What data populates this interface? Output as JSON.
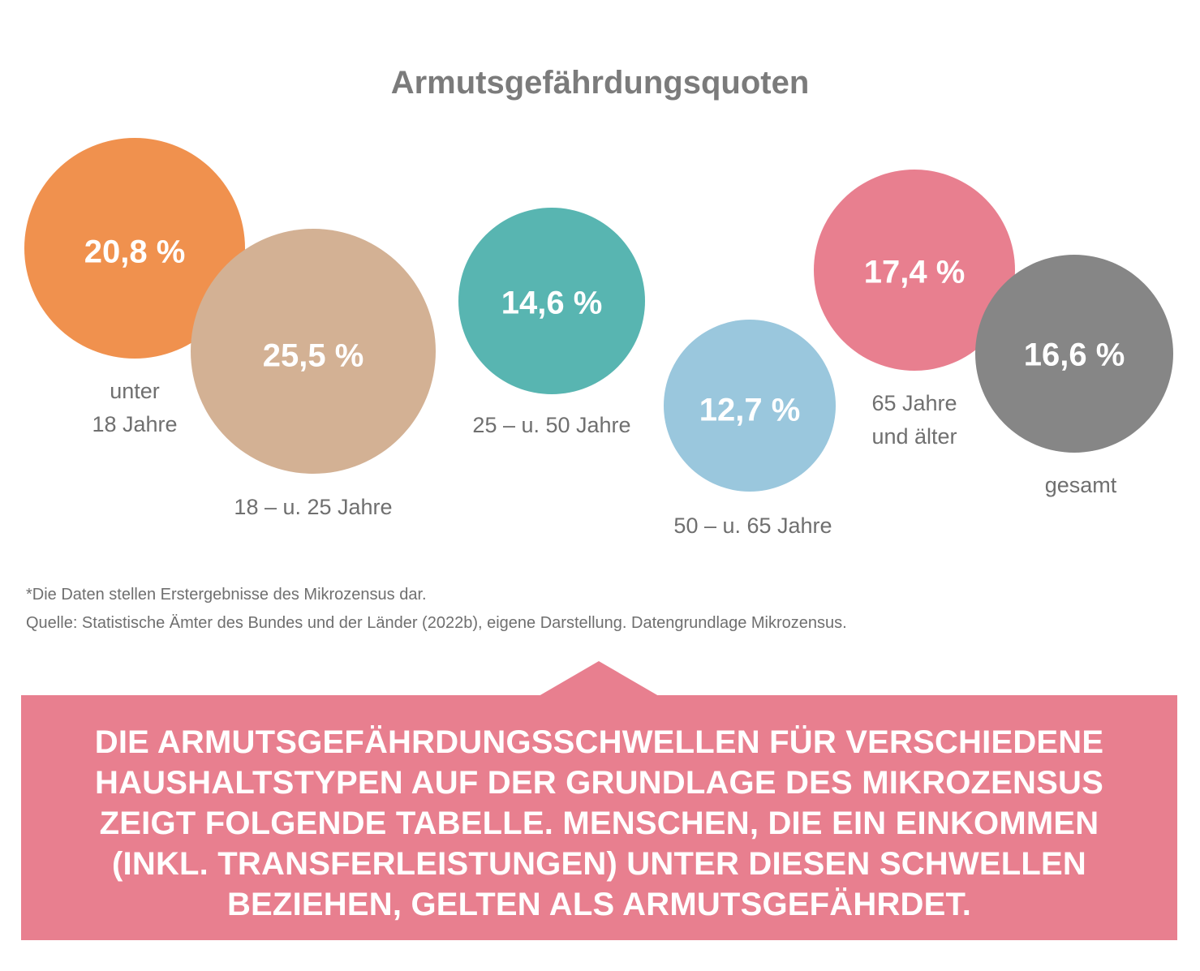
{
  "chart_data": {
    "type": "bubble",
    "title": "Armutsgefährdungsquoten",
    "series": [
      {
        "label": "unter 18 Jahre",
        "label_lines": [
          "unter",
          "18 Jahre"
        ],
        "value": 20.8,
        "value_label": "20,8 %",
        "color": "#f0914e"
      },
      {
        "label": "18 – u. 25 Jahre",
        "label_lines": [
          "18 – u. 25 Jahre"
        ],
        "value": 25.5,
        "value_label": "25,5 %",
        "color": "#d3b194"
      },
      {
        "label": "25 – u. 50 Jahre",
        "label_lines": [
          "25 – u. 50 Jahre"
        ],
        "value": 14.6,
        "value_label": "14,6 %",
        "color": "#58b5b1"
      },
      {
        "label": "50 – u. 65 Jahre",
        "label_lines": [
          "50 – u. 65 Jahre"
        ],
        "value": 12.7,
        "value_label": "12,7 %",
        "color": "#9ac7dd"
      },
      {
        "label": "65 Jahre und älter",
        "label_lines": [
          "65 Jahre",
          "und älter"
        ],
        "value": 17.4,
        "value_label": "17,4 %",
        "color": "#e87f8f"
      },
      {
        "label": "gesamt",
        "label_lines": [
          "gesamt"
        ],
        "value": 16.6,
        "value_label": "16,6 %",
        "color": "#868686"
      }
    ],
    "value_text_color": "#ffffff",
    "label_color": "#6f6f6f"
  },
  "notes": {
    "line1": "*Die Daten stellen Erstergebnisse des Mikrozensus dar.",
    "line2": "Quelle: Statistische Ämter des Bundes und der Länder (2022b), eigene Darstellung. Datengrundlage Mikrozensus."
  },
  "callout": {
    "text": "DIE ARMUTSGEFÄHRDUNGSSCHWELLEN FÜR VERSCHIEDENE HAUSHALTSTYPEN AUF DER GRUNDLAGE DES MIKROZENSUS ZEIGT FOLGENDE TABELLE. MENSCHEN, DIE EIN EINKOMMEN (INKL. TRANSFERLEISTUNGEN) UNTER DIESEN SCHWELLEN BEZIEHEN, GELTEN ALS ARMUTSGEFÄHRDET.",
    "color": "#e87f8f"
  }
}
